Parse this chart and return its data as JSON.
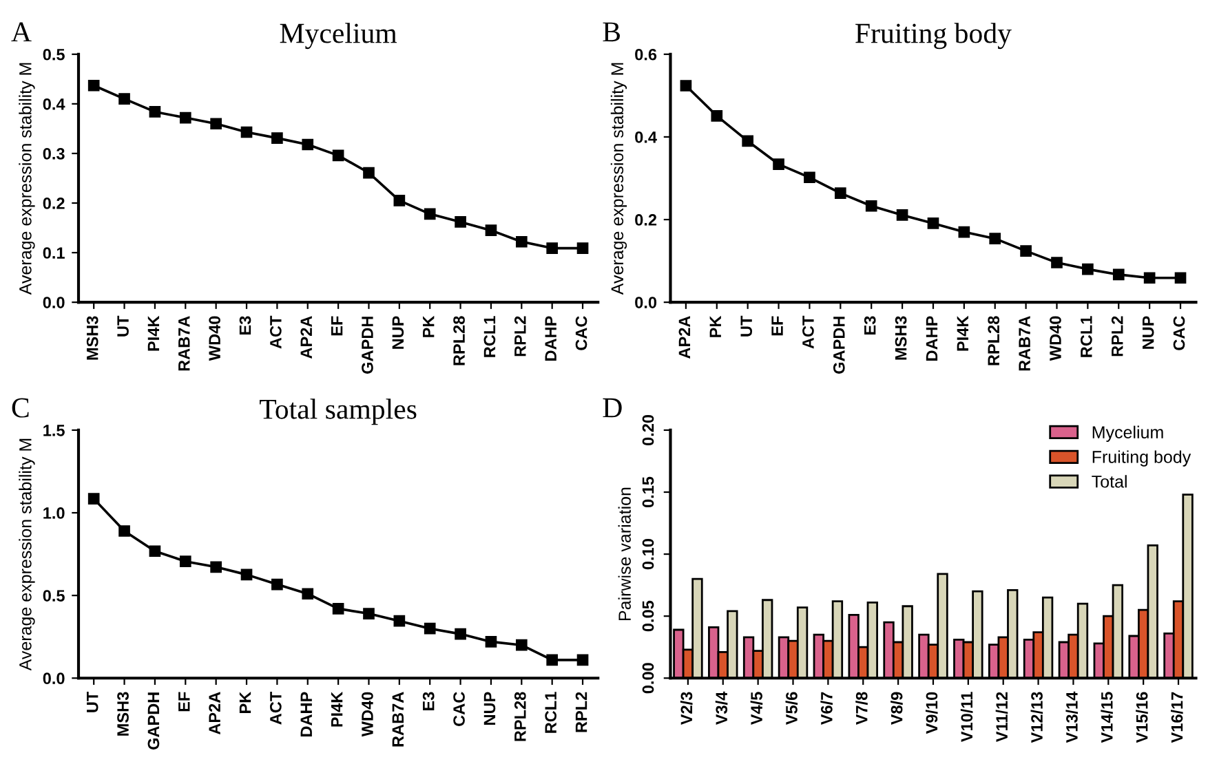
{
  "chart_data": [
    {
      "type": "line",
      "title": "Mycelium",
      "annotations": [
        "A"
      ],
      "ylabel": "Average expression stability M",
      "categories": [
        "MSH3",
        "UT",
        "PI4K",
        "RAB7A",
        "WD40",
        "E3",
        "ACT",
        "AP2A",
        "EF",
        "GAPDH",
        "NUP",
        "PK",
        "RPL28",
        "RCL1",
        "RPL2",
        "DAHP",
        "CAC"
      ],
      "series": [
        {
          "color": "#000000",
          "values": [
            0.437,
            0.41,
            0.384,
            0.372,
            0.36,
            0.343,
            0.331,
            0.318,
            0.296,
            0.261,
            0.205,
            0.178,
            0.162,
            0.145,
            0.122,
            0.109,
            0.109
          ]
        }
      ],
      "ylim": [
        0,
        0.5
      ],
      "yticks": [
        {
          "value": 0,
          "label": "0.0"
        },
        0.1,
        0.2,
        0.3,
        0.4,
        0.5
      ],
      "marker": "square",
      "line_style": "solid",
      "grid": false,
      "legend": false
    },
    {
      "type": "line",
      "title": "Fruiting body",
      "annotations": [
        "B"
      ],
      "ylabel": "Average expression stability M",
      "categories": [
        "AP2A",
        "PK",
        "UT",
        "EF",
        "ACT",
        "GAPDH",
        "E3",
        "MSH3",
        "DAHP",
        "PI4K",
        "RPL28",
        "RAB7A",
        "WD40",
        "RCL1",
        "RPL2",
        "NUP",
        "CAC"
      ],
      "series": [
        {
          "color": "#000000",
          "values": [
            0.524,
            0.451,
            0.39,
            0.334,
            0.302,
            0.264,
            0.233,
            0.211,
            0.191,
            0.17,
            0.154,
            0.124,
            0.096,
            0.08,
            0.067,
            0.059,
            0.059
          ]
        }
      ],
      "ylim": [
        0,
        0.6
      ],
      "yticks": [
        {
          "value": 0,
          "label": "0.0"
        },
        0.2,
        0.4,
        0.6
      ],
      "marker": "square",
      "line_style": "solid",
      "grid": false,
      "legend": false
    },
    {
      "type": "line",
      "title": "Total samples",
      "annotations": [
        "C"
      ],
      "ylabel": "Average expression stability M",
      "categories": [
        "UT",
        "MSH3",
        "GAPDH",
        "EF",
        "AP2A",
        "PK",
        "ACT",
        "DAHP",
        "PI4K",
        "WD40",
        "RAB7A",
        "E3",
        "CAC",
        "NUP",
        "RPL28",
        "RCL1",
        "RPL2"
      ],
      "series": [
        {
          "color": "#000000",
          "values": [
            1.085,
            0.89,
            0.768,
            0.706,
            0.672,
            0.626,
            0.567,
            0.51,
            0.42,
            0.39,
            0.346,
            0.3,
            0.267,
            0.22,
            0.2,
            0.11,
            0.11
          ]
        }
      ],
      "ylim": [
        0,
        1.5
      ],
      "yticks": [
        {
          "value": 0,
          "label": "0.0"
        },
        0.5,
        {
          "value": 1,
          "label": "1.0"
        },
        1.5
      ],
      "marker": "square",
      "line_style": "solid",
      "grid": false,
      "legend": false
    },
    {
      "type": "bar",
      "annotations": [
        "D"
      ],
      "ylabel": "Pairwise variation",
      "categories": [
        "V2/3",
        "V3/4",
        "V4/5",
        "V5/6",
        "V6/7",
        "V7/8",
        "V8/9",
        "V9/10",
        "V10/11",
        "V11/12",
        "V12/13",
        "V13/14",
        "V14/15",
        "V15/16",
        "V16/17"
      ],
      "series": [
        {
          "name": "Mycelium",
          "color": "#d9628c",
          "values": [
            0.039,
            0.041,
            0.033,
            0.033,
            0.035,
            0.051,
            0.045,
            0.035,
            0.031,
            0.027,
            0.031,
            0.029,
            0.028,
            0.034,
            0.036
          ]
        },
        {
          "name": "Fruiting body",
          "color": "#d9542a",
          "values": [
            0.023,
            0.021,
            0.022,
            0.03,
            0.03,
            0.025,
            0.029,
            0.027,
            0.029,
            0.033,
            0.037,
            0.035,
            0.05,
            0.055,
            0.062
          ]
        },
        {
          "name": "Total",
          "color": "#d8d6b8",
          "values": [
            0.08,
            0.054,
            0.063,
            0.057,
            0.062,
            0.061,
            0.058,
            0.084,
            0.07,
            0.071,
            0.065,
            0.06,
            0.075,
            0.107,
            0.148
          ]
        }
      ],
      "ylim": [
        0,
        0.2
      ],
      "yticks": [
        {
          "value": 0,
          "label": "0.00"
        },
        {
          "value": 0.05,
          "label": "0.05"
        },
        {
          "value": 0.1,
          "label": "0.10"
        },
        {
          "value": 0.15,
          "label": "0.15"
        },
        {
          "value": 0.2,
          "label": "0.20"
        }
      ],
      "grid": false,
      "legend": "top right"
    }
  ]
}
